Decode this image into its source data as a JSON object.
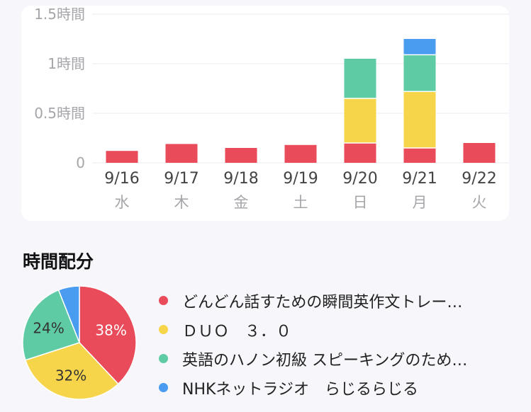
{
  "chart_data": [
    {
      "type": "bar",
      "stacked": true,
      "categories": [
        "9/16",
        "9/17",
        "9/18",
        "9/19",
        "9/20",
        "9/21",
        "9/22"
      ],
      "weekdays": [
        "水",
        "木",
        "金",
        "土",
        "日",
        "月",
        "火"
      ],
      "y_ticks": [
        {
          "value": 0,
          "label": "0"
        },
        {
          "value": 0.5,
          "label": "0.5時間"
        },
        {
          "value": 1,
          "label": "1時間"
        },
        {
          "value": 1.5,
          "label": "1.5時間"
        }
      ],
      "ylim": [
        0,
        1.5
      ],
      "grid": true,
      "series": [
        {
          "values": [
            0.12,
            0.19,
            0.15,
            0.18,
            0.2,
            0.15,
            0.2
          ]
        },
        {
          "values": [
            0,
            0,
            0,
            0,
            0.45,
            0.57,
            0
          ]
        },
        {
          "values": [
            0,
            0,
            0,
            0,
            0.4,
            0.37,
            0
          ]
        },
        {
          "values": [
            0,
            0,
            0,
            0,
            0,
            0.16,
            0
          ]
        }
      ]
    },
    {
      "type": "pie",
      "title": "時間配分",
      "labels": [
        "どんどん話すための瞬間英作文トレーニング",
        "ＤＵＯ　３．０",
        "英語のハノン初級 スピーキングのための英文法",
        "NHKネットラジオ　らじるらじる"
      ],
      "display_labels": [
        "どんどん話すための瞬間英作文トレー…",
        "ＤＵＯ　３．０",
        "英語のハノン初級 スピーキングのため…",
        "NHKネットラジオ　らじるらじる"
      ],
      "values": [
        38,
        32,
        24,
        6
      ],
      "pct_labels": [
        "38%",
        "32%",
        "24%",
        ""
      ]
    }
  ],
  "colors": [
    "#ea4b5a",
    "#f6d54a",
    "#5ecba5",
    "#4a9cf0"
  ],
  "pct_text_colors": [
    "#ffffff",
    "#333333",
    "#333333",
    "#ffffff"
  ]
}
